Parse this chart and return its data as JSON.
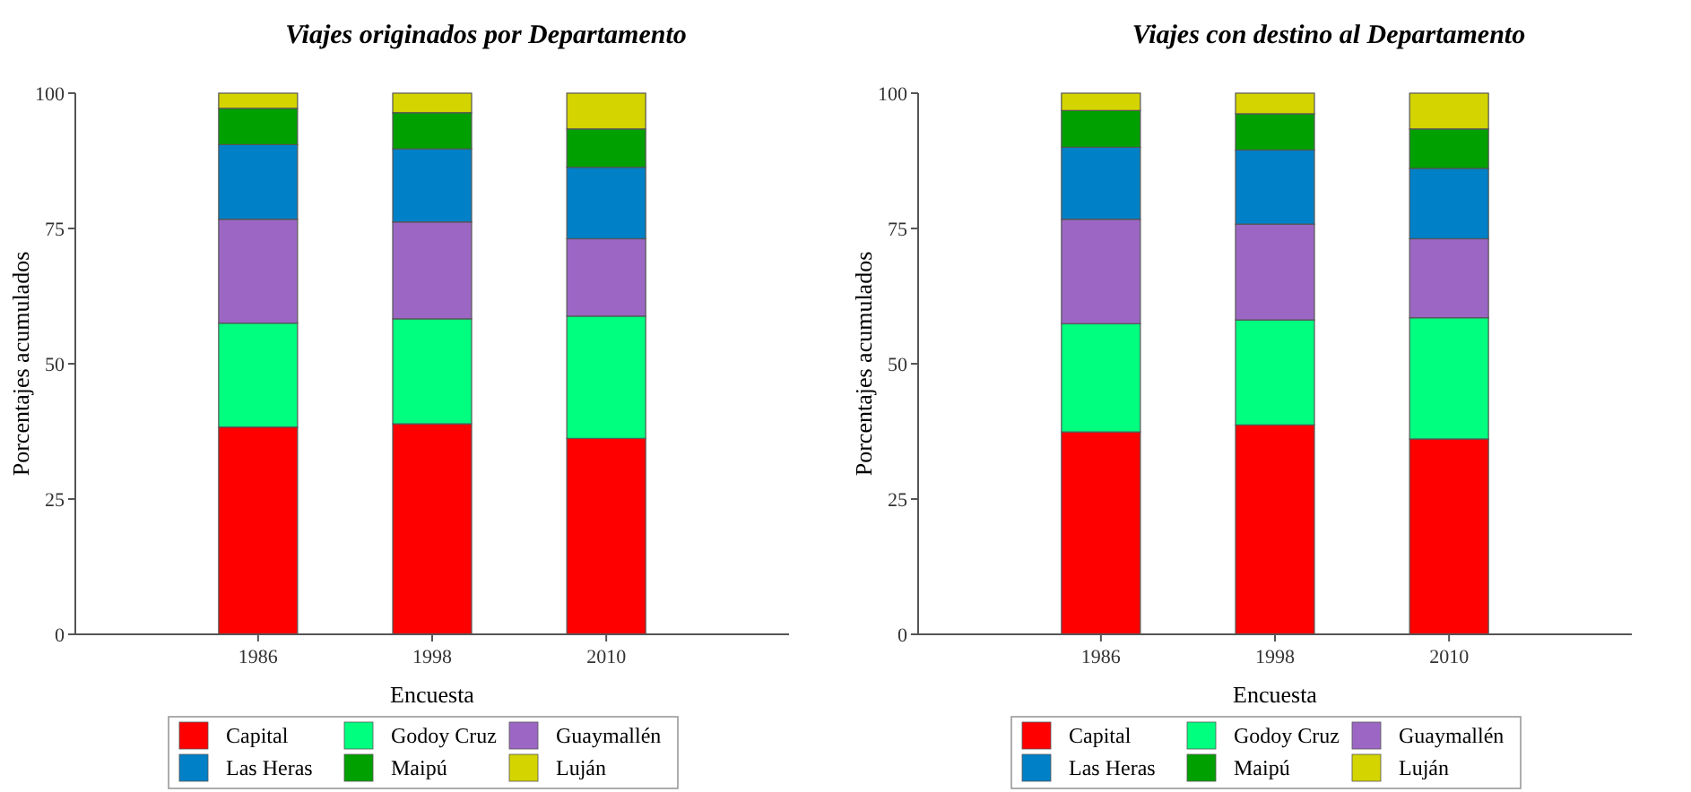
{
  "chart_data": [
    {
      "type": "bar",
      "stacked": true,
      "title": "Viajes originados por Departamento",
      "xlabel": "Encuesta",
      "ylabel": "Porcentajes acumulados",
      "categories": [
        "1986",
        "1998",
        "2010"
      ],
      "ylim": [
        0,
        100
      ],
      "yticks": [
        0,
        25,
        50,
        75,
        100
      ],
      "grid": false,
      "legend": "bottom",
      "series": [
        {
          "name": "Capital",
          "color": "#ff0000",
          "values": [
            38.3,
            38.9,
            36.2
          ]
        },
        {
          "name": "Godoy Cruz",
          "color": "#00ff7f",
          "values": [
            19.2,
            19.4,
            22.6
          ]
        },
        {
          "name": "Guaymallén",
          "color": "#9c67c4",
          "values": [
            19.2,
            17.9,
            14.3
          ]
        },
        {
          "name": "Las Heras",
          "color": "#0080c6",
          "values": [
            13.8,
            13.5,
            13.2
          ]
        },
        {
          "name": "Maipú",
          "color": "#00a000",
          "values": [
            6.7,
            6.7,
            7.1
          ]
        },
        {
          "name": "Luján",
          "color": "#d4d400",
          "values": [
            2.8,
            3.6,
            6.6
          ]
        }
      ]
    },
    {
      "type": "bar",
      "stacked": true,
      "title": "Viajes con destino al Departamento",
      "xlabel": "Encuesta",
      "ylabel": "Porcentajes acumulados",
      "categories": [
        "1986",
        "1998",
        "2010"
      ],
      "ylim": [
        0,
        100
      ],
      "yticks": [
        0,
        25,
        50,
        75,
        100
      ],
      "grid": false,
      "legend": "bottom",
      "series": [
        {
          "name": "Capital",
          "color": "#ff0000",
          "values": [
            37.4,
            38.7,
            36.1
          ]
        },
        {
          "name": "Godoy Cruz",
          "color": "#00ff7f",
          "values": [
            20.0,
            19.4,
            22.4
          ]
        },
        {
          "name": "Guaymallén",
          "color": "#9c67c4",
          "values": [
            19.3,
            17.7,
            14.6
          ]
        },
        {
          "name": "Las Heras",
          "color": "#0080c6",
          "values": [
            13.3,
            13.7,
            13.0
          ]
        },
        {
          "name": "Maipú",
          "color": "#00a000",
          "values": [
            6.8,
            6.7,
            7.3
          ]
        },
        {
          "name": "Luján",
          "color": "#d4d400",
          "values": [
            3.2,
            3.8,
            6.6
          ]
        }
      ]
    }
  ]
}
